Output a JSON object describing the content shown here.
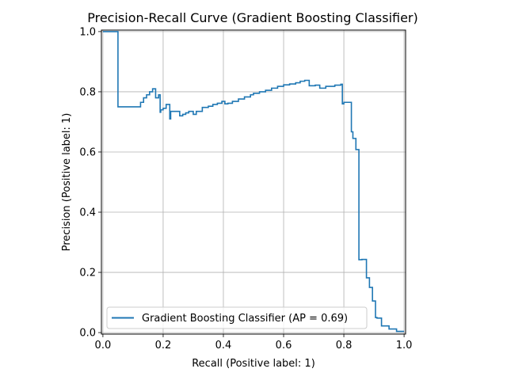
{
  "chart_data": {
    "type": "line",
    "title": "Precision-Recall Curve (Gradient Boosting Classifier)",
    "xlabel": "Recall (Positive label: 1)",
    "ylabel": "Precision (Positive label: 1)",
    "xlim": [
      -0.005,
      1.005
    ],
    "ylim": [
      -0.005,
      1.005
    ],
    "xticks": [
      0.0,
      0.2,
      0.4,
      0.6,
      0.8,
      1.0
    ],
    "yticks": [
      0.0,
      0.2,
      0.4,
      0.6,
      0.8,
      1.0
    ],
    "xtick_labels": [
      "0.0",
      "0.2",
      "0.4",
      "0.6",
      "0.8",
      "1.0"
    ],
    "ytick_labels": [
      "0.0",
      "0.2",
      "0.4",
      "0.6",
      "0.8",
      "1.0"
    ],
    "grid": true,
    "legend_position": "lower-left",
    "series": [
      {
        "name": "Gradient Boosting Classifier (AP = 0.69)",
        "color": "#1f77b4",
        "step": "post",
        "recall": [
          0.0,
          0.05,
          0.05,
          0.125,
          0.125,
          0.135,
          0.145,
          0.155,
          0.165,
          0.175,
          0.185,
          0.19,
          0.192,
          0.2,
          0.21,
          0.222,
          0.225,
          0.255,
          0.265,
          0.275,
          0.285,
          0.3,
          0.31,
          0.33,
          0.35,
          0.365,
          0.38,
          0.395,
          0.405,
          0.415,
          0.43,
          0.45,
          0.47,
          0.49,
          0.5,
          0.52,
          0.54,
          0.56,
          0.58,
          0.6,
          0.62,
          0.64,
          0.655,
          0.67,
          0.685,
          0.705,
          0.72,
          0.74,
          0.77,
          0.79,
          0.795,
          0.8,
          0.825,
          0.83,
          0.84,
          0.85,
          0.86,
          0.875,
          0.885,
          0.895,
          0.905,
          0.91,
          0.925,
          0.95,
          0.975,
          1.0
        ],
        "precision": [
          1.0,
          1.0,
          0.75,
          0.75,
          0.765,
          0.78,
          0.79,
          0.8,
          0.81,
          0.78,
          0.79,
          0.732,
          0.74,
          0.745,
          0.758,
          0.71,
          0.735,
          0.72,
          0.725,
          0.73,
          0.735,
          0.725,
          0.735,
          0.748,
          0.752,
          0.758,
          0.762,
          0.768,
          0.76,
          0.762,
          0.768,
          0.776,
          0.783,
          0.79,
          0.795,
          0.8,
          0.805,
          0.812,
          0.818,
          0.823,
          0.826,
          0.83,
          0.835,
          0.838,
          0.82,
          0.822,
          0.812,
          0.818,
          0.822,
          0.825,
          0.76,
          0.765,
          0.667,
          0.645,
          0.608,
          0.242,
          0.243,
          0.182,
          0.15,
          0.105,
          0.05,
          0.048,
          0.022,
          0.012,
          0.004,
          0.004
        ]
      }
    ]
  }
}
